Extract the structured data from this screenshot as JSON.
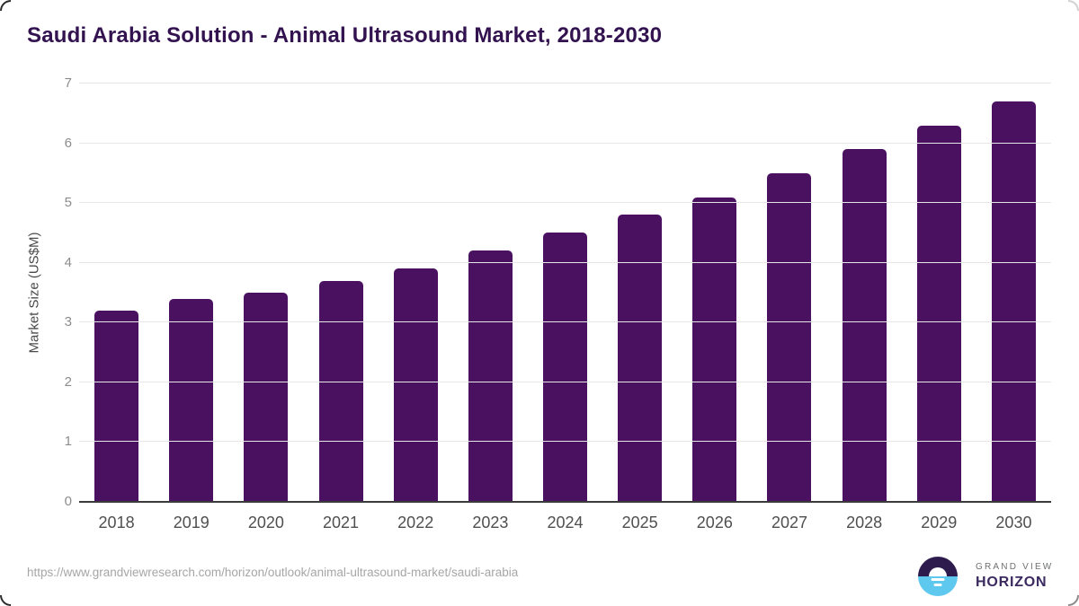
{
  "title": "Saudi Arabia Solution - Animal Ultrasound Market, 2018-2030",
  "chart_data": {
    "type": "bar",
    "title": "Saudi Arabia Solution - Animal Ultrasound Market, 2018-2030",
    "categories": [
      "2018",
      "2019",
      "2020",
      "2021",
      "2022",
      "2023",
      "2024",
      "2025",
      "2026",
      "2027",
      "2028",
      "2029",
      "2030"
    ],
    "values": [
      3.2,
      3.4,
      3.5,
      3.7,
      3.9,
      4.2,
      4.5,
      4.8,
      5.1,
      5.5,
      5.9,
      6.3,
      6.7
    ],
    "xlabel": "",
    "ylabel": "Market Size (US$M)",
    "ylim": [
      0,
      7
    ],
    "yticks": [
      0,
      1,
      2,
      3,
      4,
      5,
      6,
      7
    ],
    "grid": true,
    "legend": false,
    "bar_color": "#4a1161"
  },
  "footer": {
    "source_url": "https://www.grandviewresearch.com/horizon/outlook/animal-ultrasound-market/saudi-arabia",
    "logo": {
      "icon": "horizon-sunset-circle-icon",
      "brand_line1": "GRAND VIEW",
      "brand_line2": "HORIZON",
      "icon_dark_color": "#2d1b4e",
      "icon_blue_color": "#5fc8ee"
    }
  },
  "colors": {
    "bar": "#4a1161",
    "title_text": "#331250",
    "axis_baseline": "#3a3a3a",
    "gridline": "#e6e6e6",
    "y_tick_label": "#8c8c8c",
    "x_tick_label": "#4f4f4f",
    "axis_title": "#4a4a4a",
    "url_text": "#a6a6a6",
    "brand_gray": "#6e7072",
    "brand_purple": "#3b2a60"
  }
}
